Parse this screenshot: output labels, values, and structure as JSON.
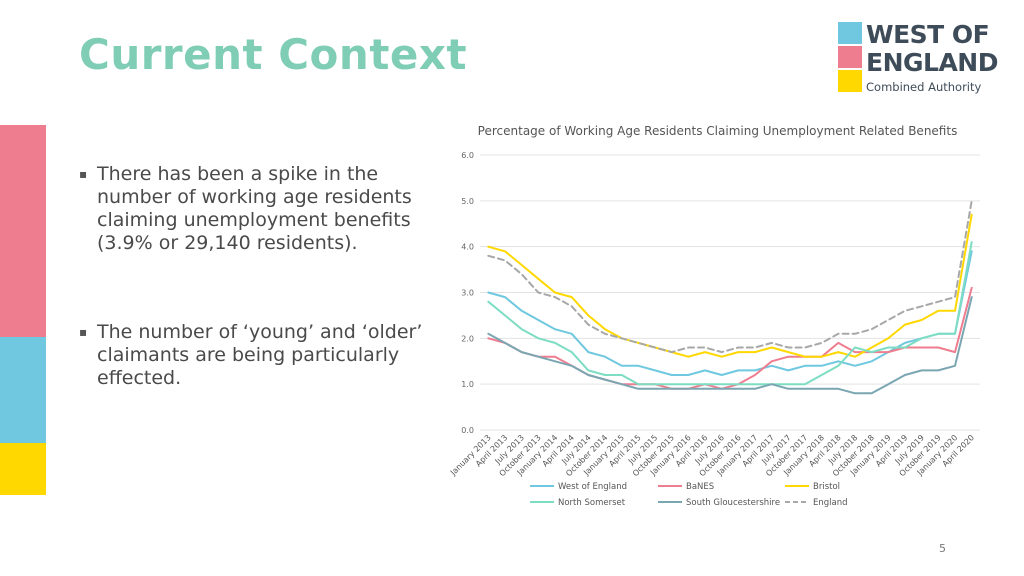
{
  "slide": {
    "title": "Current Context",
    "page_number": "5",
    "bullets": [
      "There has been a spike in the number of working age residents claiming unemployment benefits (3.9% or 29,140 residents).",
      "The number of ‘young’ and ‘older’ claimants are being particularly effected."
    ],
    "side_colors": [
      "#ee7d8f",
      "#6fc8e0",
      "#ffd800"
    ]
  },
  "logo": {
    "line1": "WEST OF",
    "line2": "ENGLAND",
    "line3": "Combined Authority",
    "colors": [
      "#6fc8e0",
      "#ee7d8f",
      "#ffd800"
    ]
  },
  "chart_data": {
    "type": "line",
    "title": "Percentage of Working Age Residents Claiming Unemployment Related Benefits",
    "xlabel": "",
    "ylabel": "",
    "ylim": [
      0,
      6
    ],
    "y_ticks": [
      "0.0",
      "1.0",
      "2.0",
      "3.0",
      "4.0",
      "5.0",
      "6.0"
    ],
    "grid": true,
    "legend_position": "bottom",
    "x": [
      "January 2013",
      "April 2013",
      "July 2013",
      "October 2013",
      "January 2014",
      "April 2014",
      "July 2014",
      "October 2014",
      "January 2015",
      "April 2015",
      "July 2015",
      "October 2015",
      "January 2016",
      "April 2016",
      "July 2016",
      "October 2016",
      "January 2017",
      "April 2017",
      "July 2017",
      "October 2017",
      "January 2018",
      "April 2018",
      "July 2018",
      "October 2018",
      "January 2019",
      "April 2019",
      "July 2019",
      "October 2019",
      "January 2020",
      "April 2020"
    ],
    "series": [
      {
        "name": "West of England",
        "color": "#6fc8e0",
        "dashed": false,
        "values": [
          3.0,
          2.9,
          2.6,
          2.4,
          2.2,
          2.1,
          1.7,
          1.6,
          1.4,
          1.4,
          1.3,
          1.2,
          1.2,
          1.3,
          1.2,
          1.3,
          1.3,
          1.4,
          1.3,
          1.4,
          1.4,
          1.5,
          1.4,
          1.5,
          1.7,
          1.9,
          2.0,
          2.1,
          2.1,
          3.9
        ]
      },
      {
        "name": "BaNES",
        "color": "#ee7d8f",
        "dashed": false,
        "values": [
          2.0,
          1.9,
          1.7,
          1.6,
          1.6,
          1.4,
          1.2,
          1.1,
          1.0,
          1.0,
          1.0,
          0.9,
          0.9,
          1.0,
          0.9,
          1.0,
          1.2,
          1.5,
          1.6,
          1.6,
          1.6,
          1.9,
          1.7,
          1.7,
          1.7,
          1.8,
          1.8,
          1.8,
          1.7,
          3.1
        ]
      },
      {
        "name": "Bristol",
        "color": "#ffd800",
        "dashed": false,
        "values": [
          4.0,
          3.9,
          3.6,
          3.3,
          3.0,
          2.9,
          2.5,
          2.2,
          2.0,
          1.9,
          1.8,
          1.7,
          1.6,
          1.7,
          1.6,
          1.7,
          1.7,
          1.8,
          1.7,
          1.6,
          1.6,
          1.7,
          1.6,
          1.8,
          2.0,
          2.3,
          2.4,
          2.6,
          2.6,
          4.7
        ]
      },
      {
        "name": "North Somerset",
        "color": "#7dddc3",
        "dashed": false,
        "values": [
          2.8,
          2.5,
          2.2,
          2.0,
          1.9,
          1.7,
          1.3,
          1.2,
          1.2,
          1.0,
          1.0,
          1.0,
          1.0,
          1.0,
          1.0,
          1.0,
          1.0,
          1.0,
          1.0,
          1.0,
          1.2,
          1.4,
          1.8,
          1.7,
          1.8,
          1.8,
          2.0,
          2.1,
          2.1,
          4.1
        ]
      },
      {
        "name": "South Gloucestershire",
        "color": "#7aa6b2",
        "dashed": false,
        "values": [
          2.1,
          1.9,
          1.7,
          1.6,
          1.5,
          1.4,
          1.2,
          1.1,
          1.0,
          0.9,
          0.9,
          0.9,
          0.9,
          0.9,
          0.9,
          0.9,
          0.9,
          1.0,
          0.9,
          0.9,
          0.9,
          0.9,
          0.8,
          0.8,
          1.0,
          1.2,
          1.3,
          1.3,
          1.4,
          2.9
        ]
      },
      {
        "name": "England",
        "color": "#a8a8a8",
        "dashed": true,
        "values": [
          3.8,
          3.7,
          3.4,
          3.0,
          2.9,
          2.7,
          2.3,
          2.1,
          2.0,
          1.9,
          1.8,
          1.7,
          1.8,
          1.8,
          1.7,
          1.8,
          1.8,
          1.9,
          1.8,
          1.8,
          1.9,
          2.1,
          2.1,
          2.2,
          2.4,
          2.6,
          2.7,
          2.8,
          2.9,
          5.0
        ]
      }
    ]
  }
}
